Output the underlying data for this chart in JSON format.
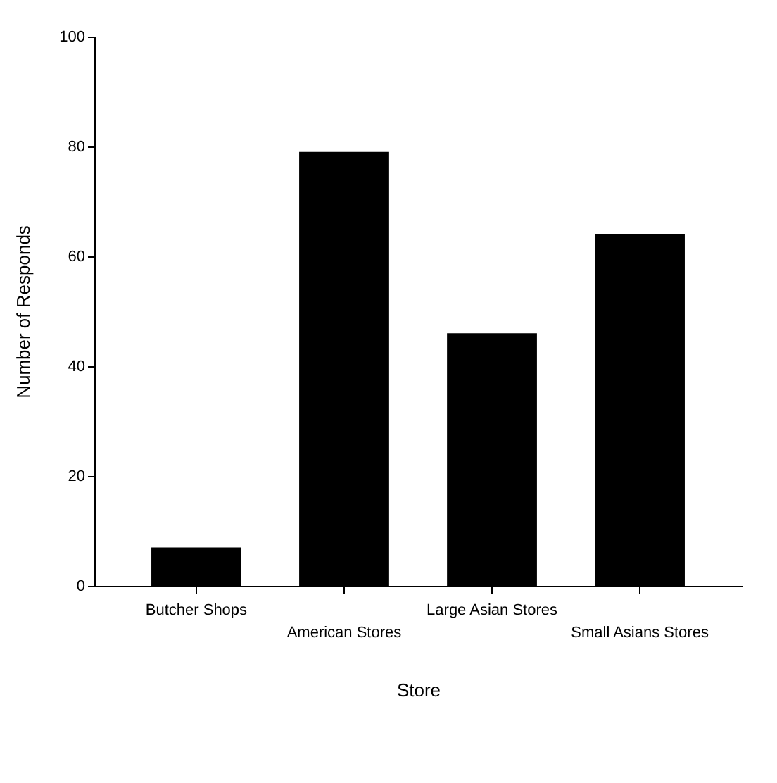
{
  "chart_data": {
    "type": "bar",
    "xlabel": "Store",
    "ylabel": "Number of Responds",
    "categories": [
      "Butcher Shops",
      "American Stores",
      "Large Asian Stores",
      "Small Asians Stores"
    ],
    "values": [
      7,
      79,
      46,
      64
    ],
    "color": "#000000",
    "ylim": [
      0,
      100
    ],
    "yticks": [
      0,
      20,
      40,
      60,
      80,
      100
    ],
    "grid": false
  }
}
